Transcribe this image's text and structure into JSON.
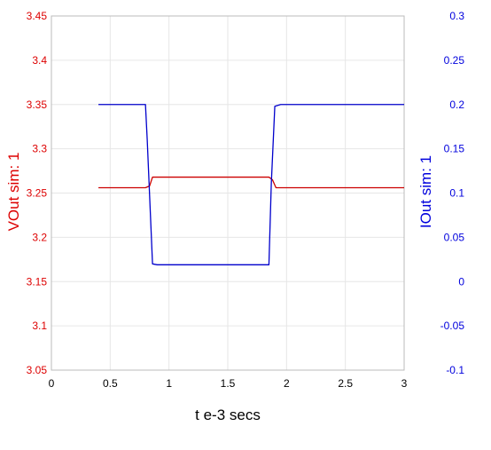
{
  "chart_data": {
    "type": "line",
    "title": "",
    "xlabel": "t e-3 secs",
    "ylabel_left": "VOut sim:  1",
    "ylabel_right": "IOut sim:  1",
    "xlim": [
      0,
      3
    ],
    "ylim_left": [
      3.05,
      3.45
    ],
    "ylim_right": [
      -0.1,
      0.3
    ],
    "x_ticks": [
      "0",
      "0.5",
      "1",
      "1.5",
      "2",
      "2.5",
      "3"
    ],
    "y_left_ticks": [
      "3.05",
      "3.1",
      "3.15",
      "3.2",
      "3.25",
      "3.3",
      "3.35",
      "3.4",
      "3.45"
    ],
    "y_right_ticks": [
      "-0.1",
      "-0.05",
      "0",
      "0.05",
      "0.1",
      "0.15",
      "0.2",
      "0.25",
      "0.3"
    ],
    "grid": true,
    "colors": {
      "left_axis": "#dd0000",
      "right_axis": "#0000dd",
      "grid": "#e6e6e6",
      "frame": "#bbbbbb",
      "x_axis_text": "#000000"
    },
    "series": [
      {
        "axis": "left",
        "color": "#cc0000",
        "x": [
          0.4,
          0.8,
          0.835,
          0.86,
          1.0,
          1.5,
          1.85,
          1.88,
          1.91,
          2.0,
          2.5,
          3.0
        ],
        "y": [
          3.256,
          3.256,
          3.258,
          3.268,
          3.268,
          3.268,
          3.268,
          3.265,
          3.256,
          3.256,
          3.256,
          3.256
        ]
      },
      {
        "axis": "right",
        "color": "#0000cc",
        "x": [
          0.4,
          0.8,
          0.815,
          0.86,
          0.9,
          1.2,
          1.5,
          1.85,
          1.87,
          1.9,
          1.95,
          2.5,
          3.0
        ],
        "y": [
          0.2,
          0.2,
          0.16,
          0.02,
          0.019,
          0.019,
          0.019,
          0.019,
          0.11,
          0.198,
          0.2,
          0.2,
          0.2
        ]
      }
    ]
  }
}
